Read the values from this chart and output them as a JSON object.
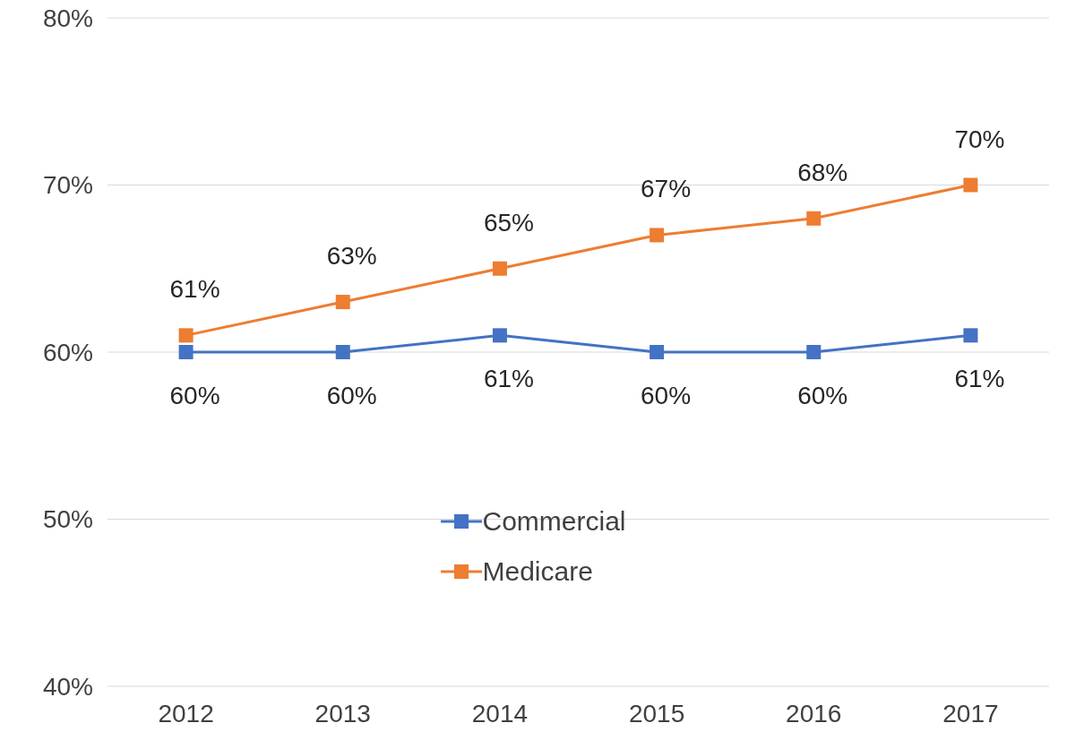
{
  "chart_data": {
    "type": "line",
    "categories": [
      "2012",
      "2013",
      "2014",
      "2015",
      "2016",
      "2017"
    ],
    "series": [
      {
        "name": "Commercial",
        "color": "#4472c4",
        "values": [
          60,
          60,
          61,
          60,
          60,
          61
        ],
        "value_labels": [
          "60%",
          "60%",
          "61%",
          "60%",
          "60%",
          "61%"
        ]
      },
      {
        "name": "Medicare",
        "color": "#ed7d31",
        "values": [
          61,
          63,
          65,
          67,
          68,
          70
        ],
        "value_labels": [
          "61%",
          "63%",
          "65%",
          "67%",
          "68%",
          "70%"
        ]
      }
    ],
    "ylim": [
      40,
      80
    ],
    "yticks": [
      {
        "value": 40,
        "label": "40%"
      },
      {
        "value": 50,
        "label": "50%"
      },
      {
        "value": 60,
        "label": "60%"
      },
      {
        "value": 70,
        "label": "70%"
      },
      {
        "value": 80,
        "label": "80%"
      }
    ],
    "grid": "y",
    "legend": "bottom",
    "marker": "square",
    "line_style": "solid"
  }
}
